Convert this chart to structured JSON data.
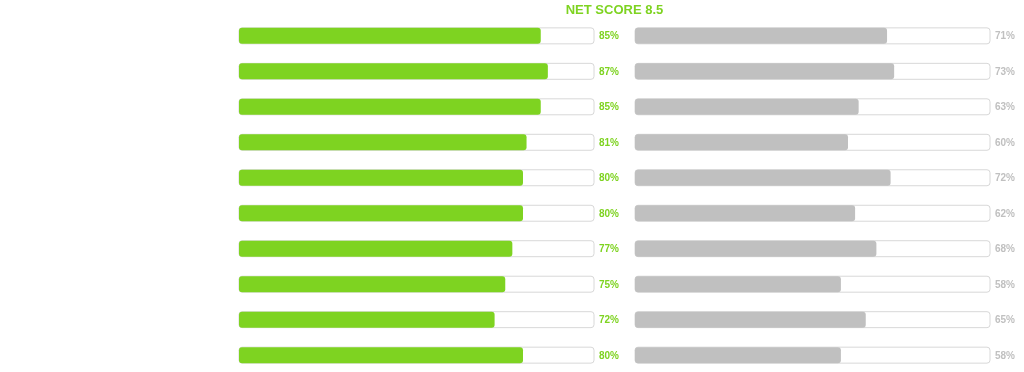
{
  "chart_data": [
    {
      "type": "bar",
      "orientation": "horizontal",
      "title": "NET SCORE 8.5",
      "categories": [
        null,
        null,
        null,
        null,
        null,
        null,
        null,
        null,
        null,
        null
      ],
      "xlim": [
        0,
        100
      ],
      "series": [
        {
          "color": "#7ed321",
          "values": [
            85,
            87,
            85,
            81,
            80,
            80,
            77,
            75,
            72,
            80
          ],
          "value_labels": [
            "85%",
            "87%",
            "85%",
            "81%",
            "80%",
            "80%",
            "77%",
            "75%",
            "72%",
            "80%"
          ]
        }
      ]
    },
    {
      "type": "bar",
      "orientation": "horizontal",
      "categories": [
        null,
        null,
        null,
        null,
        null,
        null,
        null,
        null,
        null,
        null
      ],
      "xlim": [
        0,
        100
      ],
      "series": [
        {
          "color": "#c0c0c0",
          "values": [
            71,
            73,
            63,
            60,
            72,
            62,
            68,
            58,
            65,
            58
          ],
          "value_labels": [
            "71%",
            "73%",
            "63%",
            "60%",
            "72%",
            "62%",
            "68%",
            "58%",
            "65%",
            "58%"
          ]
        }
      ]
    }
  ]
}
